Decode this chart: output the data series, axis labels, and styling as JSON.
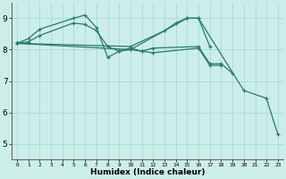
{
  "background_color": "#cceee8",
  "grid_color": "#aadddd",
  "line_color": "#2a7a6a",
  "xlabel": "Humidex (Indice chaleur)",
  "xlim": [
    -0.5,
    23.5
  ],
  "ylim": [
    4.5,
    9.5
  ],
  "yticks": [
    5,
    6,
    7,
    8,
    9
  ],
  "xticks": [
    0,
    1,
    2,
    3,
    4,
    5,
    6,
    7,
    8,
    9,
    10,
    11,
    12,
    13,
    14,
    15,
    16,
    17,
    18,
    19,
    20,
    21,
    22,
    23
  ],
  "series": [
    {
      "x": [
        0,
        1,
        2,
        5,
        6,
        7,
        8,
        9,
        10,
        11,
        12,
        16,
        17,
        18,
        19
      ],
      "y": [
        8.2,
        8.35,
        8.65,
        9.0,
        9.1,
        8.7,
        7.75,
        7.95,
        8.05,
        7.95,
        8.05,
        8.1,
        7.55,
        7.55,
        7.25
      ]
    },
    {
      "x": [
        0,
        1,
        2,
        5,
        6,
        7,
        8,
        9,
        10,
        11,
        12,
        16,
        17,
        18
      ],
      "y": [
        8.2,
        8.25,
        8.45,
        8.85,
        8.8,
        8.6,
        8.1,
        7.95,
        8.0,
        7.95,
        7.9,
        8.05,
        7.5,
        7.5
      ]
    },
    {
      "x": [
        0,
        10,
        13,
        14,
        15,
        16,
        17
      ],
      "y": [
        8.2,
        8.1,
        8.6,
        8.85,
        9.0,
        9.0,
        8.1
      ]
    },
    {
      "x": [
        0,
        10,
        15,
        16,
        20,
        22,
        23
      ],
      "y": [
        8.2,
        8.0,
        9.0,
        9.0,
        6.7,
        6.45,
        5.3
      ]
    }
  ]
}
